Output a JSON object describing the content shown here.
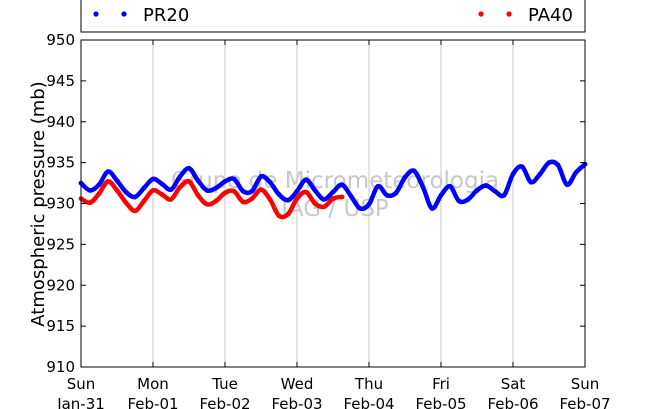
{
  "chart_data": {
    "type": "line",
    "title": "",
    "xlabel": "",
    "ylabel": "Atmospheric pressure (mb)",
    "ylim": [
      910,
      950
    ],
    "xlim": [
      "2021-01-31",
      "2021-02-07"
    ],
    "yticks": [
      "910",
      "915",
      "920",
      "925",
      "930",
      "935",
      "940",
      "945",
      "950"
    ],
    "xticks": [
      {
        "day": "Sun",
        "date": "Jan-31"
      },
      {
        "day": "Mon",
        "date": "Feb-01"
      },
      {
        "day": "Tue",
        "date": "Feb-02"
      },
      {
        "day": "Wed",
        "date": "Feb-03"
      },
      {
        "day": "Thu",
        "date": "Feb-04"
      },
      {
        "day": "Fri",
        "date": "Feb-05"
      },
      {
        "day": "Sat",
        "date": "Feb-06"
      },
      {
        "day": "Sun",
        "date": "Feb-07"
      }
    ],
    "grid": true,
    "legend_placement": "top",
    "watermark": [
      "Grupo de Micrometeorologia",
      "IAG / USP"
    ],
    "series": [
      {
        "name": "PR20",
        "color": "#0000ff",
        "x": [
          "2021-01-31 00:00",
          "2021-01-31 03:00",
          "2021-01-31 06:00",
          "2021-01-31 09:00",
          "2021-01-31 12:00",
          "2021-01-31 15:00",
          "2021-01-31 18:00",
          "2021-01-31 21:00",
          "2021-02-01 00:00",
          "2021-02-01 03:00",
          "2021-02-01 06:00",
          "2021-02-01 09:00",
          "2021-02-01 12:00",
          "2021-02-01 15:00",
          "2021-02-01 18:00",
          "2021-02-01 21:00",
          "2021-02-02 00:00",
          "2021-02-02 03:00",
          "2021-02-02 06:00",
          "2021-02-02 09:00",
          "2021-02-02 12:00",
          "2021-02-02 15:00",
          "2021-02-02 18:00",
          "2021-02-02 21:00",
          "2021-02-03 00:00",
          "2021-02-03 03:00",
          "2021-02-03 06:00",
          "2021-02-03 09:00",
          "2021-02-03 12:00",
          "2021-02-03 15:00",
          "2021-02-03 18:00",
          "2021-02-03 21:00",
          "2021-02-04 00:00",
          "2021-02-04 03:00",
          "2021-02-04 06:00",
          "2021-02-04 09:00",
          "2021-02-04 12:00",
          "2021-02-04 15:00",
          "2021-02-04 18:00",
          "2021-02-04 21:00",
          "2021-02-05 00:00",
          "2021-02-05 03:00",
          "2021-02-05 06:00",
          "2021-02-05 09:00",
          "2021-02-05 12:00",
          "2021-02-05 15:00",
          "2021-02-05 18:00",
          "2021-02-05 21:00",
          "2021-02-06 00:00",
          "2021-02-06 03:00",
          "2021-02-06 06:00",
          "2021-02-06 09:00",
          "2021-02-06 12:00",
          "2021-02-06 15:00",
          "2021-02-06 18:00",
          "2021-02-06 21:00",
          "2021-02-07 00:00"
        ],
        "values": [
          932.5,
          931.6,
          932.3,
          933.9,
          932.8,
          931.4,
          930.8,
          931.9,
          933.0,
          932.4,
          931.7,
          933.3,
          934.3,
          932.8,
          931.6,
          931.9,
          932.7,
          933.0,
          931.5,
          931.5,
          933.3,
          932.6,
          931.1,
          930.4,
          931.5,
          932.9,
          931.6,
          930.5,
          931.4,
          932.3,
          930.9,
          929.4,
          929.9,
          932.1,
          931.0,
          931.3,
          933.2,
          934.0,
          932.0,
          929.4,
          931.0,
          932.1,
          930.3,
          930.5,
          931.6,
          932.2,
          931.5,
          931.0,
          933.6,
          934.5,
          932.6,
          933.6,
          935.0,
          934.7,
          932.3,
          933.8,
          934.8
        ]
      },
      {
        "name": "PA40",
        "color": "#ff0000",
        "x": [
          "2021-01-31 00:00",
          "2021-01-31 03:00",
          "2021-01-31 06:00",
          "2021-01-31 09:00",
          "2021-01-31 12:00",
          "2021-01-31 15:00",
          "2021-01-31 18:00",
          "2021-01-31 21:00",
          "2021-02-01 00:00",
          "2021-02-01 03:00",
          "2021-02-01 06:00",
          "2021-02-01 09:00",
          "2021-02-01 12:00",
          "2021-02-01 15:00",
          "2021-02-01 18:00",
          "2021-02-01 21:00",
          "2021-02-02 00:00",
          "2021-02-02 03:00",
          "2021-02-02 06:00",
          "2021-02-02 09:00",
          "2021-02-02 12:00",
          "2021-02-02 15:00",
          "2021-02-02 18:00",
          "2021-02-02 21:00",
          "2021-02-03 00:00",
          "2021-02-03 03:00",
          "2021-02-03 06:00",
          "2021-02-03 09:00",
          "2021-02-03 12:00",
          "2021-02-03 15:00"
        ],
        "values": [
          930.6,
          930.1,
          931.2,
          932.7,
          931.6,
          930.1,
          929.1,
          930.3,
          931.6,
          931.1,
          930.5,
          932.0,
          932.7,
          931.0,
          929.9,
          930.3,
          931.3,
          931.5,
          930.2,
          930.6,
          931.7,
          930.5,
          928.5,
          928.7,
          930.6,
          931.4,
          930.0,
          929.6,
          930.6,
          930.8
        ]
      }
    ]
  }
}
